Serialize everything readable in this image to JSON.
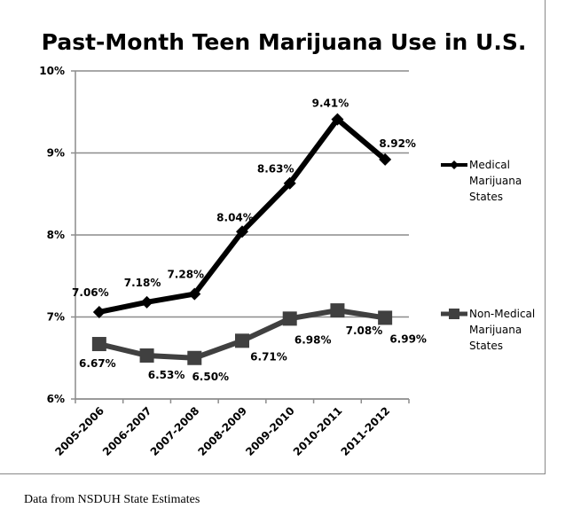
{
  "chart_data": {
    "type": "line",
    "title": "Past-Month Teen Marijuana Use in U.S.",
    "categories": [
      "2005-2006",
      "2006-2007",
      "2007-2008",
      "2008-2009",
      "2009-2010",
      "2010-2011",
      "2011-2012"
    ],
    "ylim": [
      6,
      10
    ],
    "yticks": [
      6,
      7,
      8,
      9,
      10
    ],
    "ytick_labels": [
      "6%",
      "7%",
      "8%",
      "9%",
      "10%"
    ],
    "grid": true,
    "legend_position": "right",
    "series": [
      {
        "name": "Medical Marijuana States",
        "legend_lines": [
          "Medical",
          "Marijuana",
          "States"
        ],
        "marker": "diamond",
        "color": "#000000",
        "values": [
          7.06,
          7.18,
          7.28,
          8.04,
          8.63,
          9.41,
          8.92
        ],
        "labels": [
          "7.06%",
          "7.18%",
          "7.28%",
          "8.04%",
          "8.63%",
          "9.41%",
          "8.92%"
        ]
      },
      {
        "name": "Non-Medical Marijuana States",
        "legend_lines": [
          "Non-Medical",
          "Marijuana",
          "States"
        ],
        "marker": "square",
        "color": "#404040",
        "values": [
          6.67,
          6.53,
          6.5,
          6.71,
          6.98,
          7.08,
          6.99
        ],
        "labels": [
          "6.67%",
          "6.53%",
          "6.50%",
          "6.71%",
          "6.98%",
          "7.08%",
          "6.99%"
        ]
      }
    ]
  },
  "source_note": "Data from NSDUH State Estimates"
}
